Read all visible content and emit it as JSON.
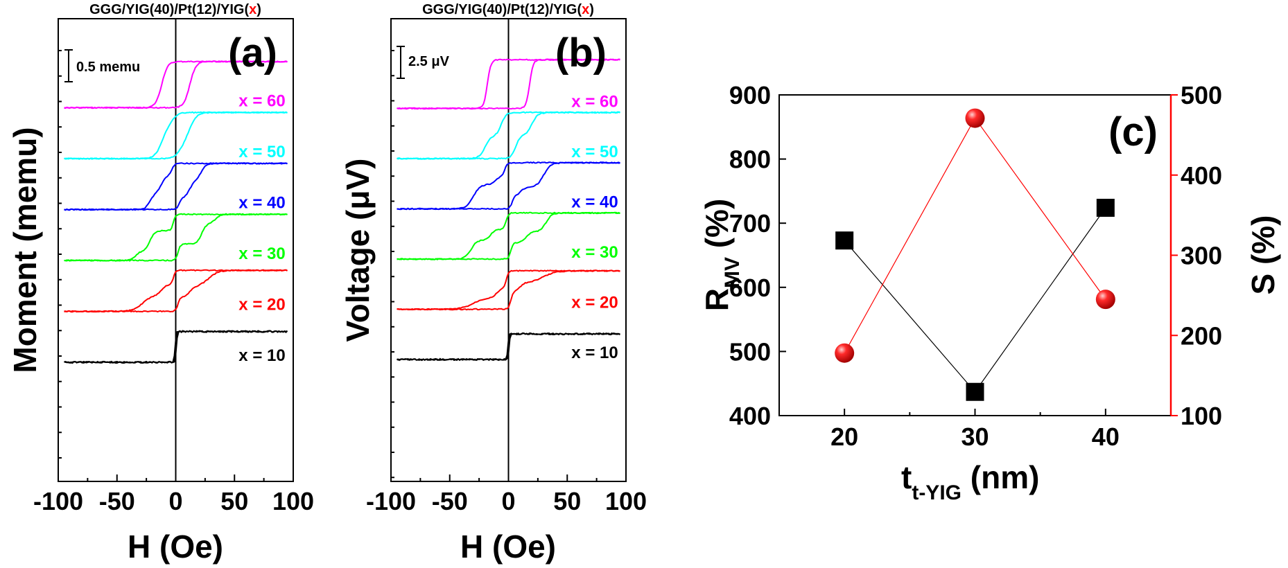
{
  "chart_data": [
    {
      "type": "line",
      "panel_label": "(a)",
      "title_prefix": "GGG/YIG(40)/Pt(12)/YIG(",
      "title_var": "x",
      "title_suffix": ")",
      "xlabel": "H (Oe)",
      "ylabel": "Moment (memu)",
      "xlim": [
        -100,
        100
      ],
      "xticks": [
        "-100",
        "-50",
        "0",
        "50",
        "100"
      ],
      "scale_bar": "0.5 memu",
      "series": [
        {
          "name": "x = 60",
          "color": "#ff00ff",
          "offset": 5,
          "steps": [
            [
              0.6,
              12,
              5
            ]
          ],
          "sat": 0.9
        },
        {
          "name": "x = 50",
          "color": "#00ffff",
          "offset": 4,
          "steps": [
            [
              0.3,
              4,
              6
            ],
            [
              0.6,
              12,
              6
            ]
          ],
          "sat": 0.9
        },
        {
          "name": "x = 40",
          "color": "#0000ff",
          "offset": 3,
          "steps": [
            [
              0.2,
              3,
              2
            ],
            [
              0.4,
              12,
              5
            ],
            [
              0.3,
              22,
              4
            ]
          ],
          "sat": 0.9
        },
        {
          "name": "x = 30",
          "color": "#00ff00",
          "offset": 2,
          "steps": [
            [
              0.32,
              2,
              2
            ],
            [
              0.4,
              22,
              4
            ],
            [
              0.18,
              34,
              4
            ]
          ],
          "sat": 0.9
        },
        {
          "name": "x = 20",
          "color": "#ff0000",
          "offset": 1,
          "steps": [
            [
              0.28,
              2,
              2
            ],
            [
              0.2,
              12,
              4
            ],
            [
              0.32,
              28,
              8
            ]
          ],
          "sat": 0.8
        },
        {
          "name": "x = 10",
          "color": "#000000",
          "offset": 0,
          "steps": [
            [
              0.6,
              0.5,
              1
            ]
          ],
          "sat": 0.6
        }
      ]
    },
    {
      "type": "line",
      "panel_label": "(b)",
      "title_prefix": "GGG/YIG(40)/Pt(12)/YIG(",
      "title_var": "x",
      "title_suffix": ")",
      "xlabel": "H (Oe)",
      "ylabel": "Voltage (μV)",
      "xlim": [
        -100,
        100
      ],
      "xticks": [
        "-100",
        "-50",
        "0",
        "50",
        "100"
      ],
      "scale_bar": "2.5 μV",
      "series": [
        {
          "name": "x = 60",
          "color": "#ff00ff",
          "offset": 5,
          "steps": [
            [
              0.95,
              18,
              3
            ]
          ],
          "sat": 0.95
        },
        {
          "name": "x = 50",
          "color": "#00ffff",
          "offset": 4,
          "steps": [
            [
              0.45,
              6,
              4
            ],
            [
              0.45,
              20,
              5
            ]
          ],
          "sat": 0.9
        },
        {
          "name": "x = 40",
          "color": "#0000ff",
          "offset": 3,
          "steps": [
            [
              0.2,
              3,
              2
            ],
            [
              0.4,
              30,
              6
            ],
            [
              0.15,
              10,
              4
            ]
          ],
          "sat": 0.9
        },
        {
          "name": "x = 30",
          "color": "#00ff00",
          "offset": 2,
          "steps": [
            [
              0.3,
              2,
              2
            ],
            [
              0.35,
              32,
              5
            ],
            [
              0.2,
              15,
              4
            ]
          ],
          "sat": 0.9
        },
        {
          "name": "x = 20",
          "color": "#ff0000",
          "offset": 1,
          "steps": [
            [
              0.3,
              2,
              2
            ],
            [
              0.15,
              10,
              4
            ],
            [
              0.2,
              30,
              10
            ]
          ],
          "sat": 0.75
        },
        {
          "name": "x = 10",
          "color": "#000000",
          "offset": 0,
          "steps": [
            [
              0.4,
              0.5,
              1
            ]
          ],
          "sat": 0.5
        }
      ]
    },
    {
      "type": "scatter",
      "panel_label": "(c)",
      "xlabel_main": "t",
      "xlabel_sub": "t-YIG",
      "xlabel_unit": " (nm)",
      "xlim": [
        15,
        45
      ],
      "xticks": [
        20,
        30,
        40
      ],
      "left_axis": {
        "label_main": "R",
        "label_sub": "MV",
        "label_unit": " (%)",
        "ylim": [
          400,
          900
        ],
        "yticks": [
          400,
          500,
          600,
          700,
          800,
          900
        ],
        "color": "#000000"
      },
      "right_axis": {
        "label": "S (%)",
        "ylim": [
          100,
          500
        ],
        "yticks": [
          100,
          200,
          300,
          400,
          500
        ],
        "color": "#ff0000"
      },
      "series": [
        {
          "name": "R_MV",
          "axis": "left",
          "marker": "square",
          "color": "#000000",
          "x": [
            20,
            30,
            40
          ],
          "y": [
            673,
            437,
            724
          ]
        },
        {
          "name": "S",
          "axis": "right",
          "marker": "sphere",
          "color": "#ff0000",
          "x": [
            20,
            30,
            40
          ],
          "y": [
            178,
            471,
            245
          ]
        }
      ]
    }
  ]
}
